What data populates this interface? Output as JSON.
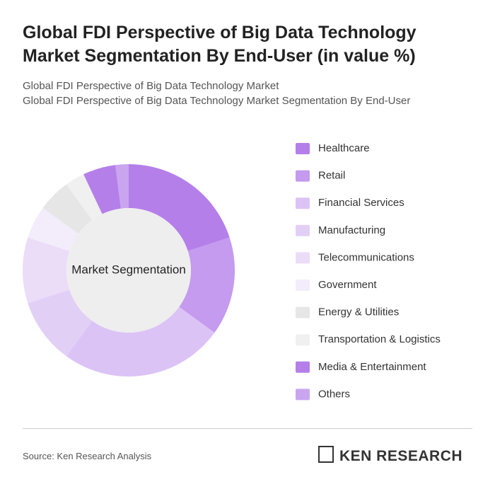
{
  "chart_data": {
    "type": "donut",
    "title": "Global FDI Perspective of Big Data Technology Market Segmentation By End-User (in value %)",
    "subtitles": [
      "Global FDI Perspective of Big Data Technology Market",
      "Global FDI Perspective of Big Data Technology Market Segmentation By End-User"
    ],
    "center_label": "Market Segmentation",
    "categories": [
      "Healthcare",
      "Retail",
      "Financial Services",
      "Manufacturing",
      "Telecommunications",
      "Government",
      "Energy & Utilities",
      "Transportation & Logistics",
      "Media & Entertainment",
      "Others"
    ],
    "values": [
      20,
      15,
      25,
      10,
      10,
      5,
      5,
      3,
      5,
      2
    ],
    "colors": [
      "#b57fea",
      "#c49bee",
      "#dcc3f6",
      "#e2cff6",
      "#ebdcf8",
      "#f3ecfb",
      "#e6e6e6",
      "#f0f0f0",
      "#b57fea",
      "#c9a5f0"
    ]
  },
  "source": "Source: Ken Research Analysis",
  "brand": "KEN RESEARCH"
}
